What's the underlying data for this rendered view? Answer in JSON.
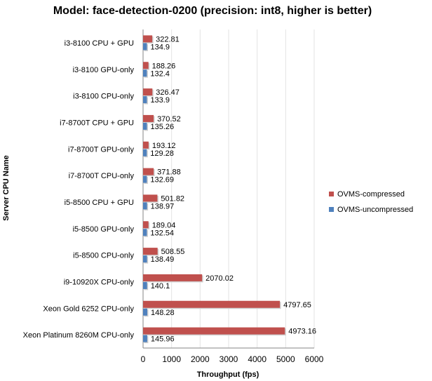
{
  "chart_data": {
    "type": "bar",
    "orientation": "horizontal",
    "title": "Model: face-detection-0200 (precision: int8, higher is better)",
    "xlabel": "Throughput (fps)",
    "ylabel": "Server CPU Name",
    "xlim": [
      0,
      6000
    ],
    "xticks": [
      0,
      1000,
      2000,
      3000,
      4000,
      5000,
      6000
    ],
    "grid": true,
    "legend_position": "right",
    "categories": [
      "i3-8100 CPU + GPU",
      "i3-8100 GPU-only",
      "i3-8100 CPU-only",
      "i7-8700T CPU + GPU",
      "i7-8700T GPU-only",
      "i7-8700T CPU-only",
      "i5-8500 CPU + GPU",
      "i5-8500 GPU-only",
      "i5-8500 CPU-only",
      "i9-10920X CPU-only",
      "Xeon Gold 6252 CPU-only",
      "Xeon Platinum 8260M CPU-only"
    ],
    "series": [
      {
        "name": "OVMS-compressed",
        "color": "#c0504d",
        "values": [
          "322.81",
          "188.26",
          "326.47",
          "370.52",
          "193.12",
          "371.88",
          "501.82",
          "189.04",
          "508.55",
          "2070.02",
          "4797.65",
          "4973.16"
        ]
      },
      {
        "name": "OVMS-uncompressed",
        "color": "#4f81bd",
        "values": [
          "134.9",
          "132.4",
          "133.9",
          "135.26",
          "129.28",
          "132.69",
          "138.97",
          "132.54",
          "138.49",
          "140.1",
          "148.28",
          "145.96"
        ]
      }
    ]
  }
}
